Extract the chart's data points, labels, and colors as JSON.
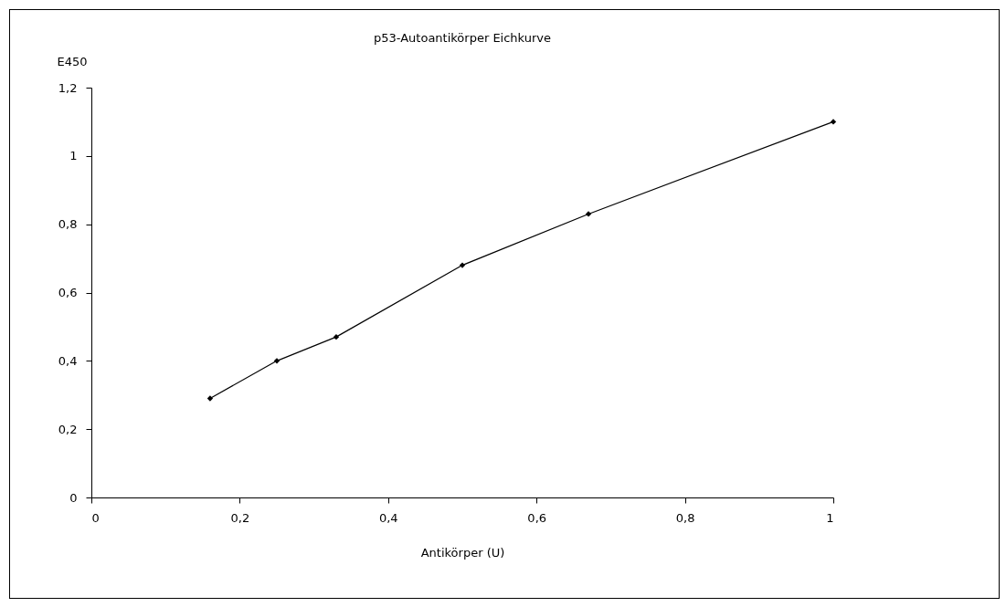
{
  "chart_data": {
    "type": "line",
    "title": "p53-Autoantikörper Eichkurve",
    "xlabel": "Antikörper (U)",
    "ylabel": "E450",
    "x": [
      0.16,
      0.25,
      0.33,
      0.5,
      0.67,
      1
    ],
    "series": [
      {
        "color": "#000000",
        "values": [
          0.29,
          0.4,
          0.47,
          0.68,
          0.83,
          1.1
        ]
      }
    ],
    "xlim": [
      0,
      1
    ],
    "ylim": [
      0,
      1.2
    ],
    "xticks": [
      0,
      {
        "value": 0.2,
        "label": "0,2"
      },
      {
        "value": 0.4,
        "label": "0,4"
      },
      {
        "value": 0.6,
        "label": "0,6"
      },
      {
        "value": 0.8,
        "label": "0,8"
      },
      1
    ],
    "yticks": [
      0,
      {
        "value": 0.2,
        "label": "0,2"
      },
      {
        "value": 0.4,
        "label": "0,4"
      },
      {
        "value": 0.6,
        "label": "0,6"
      },
      {
        "value": 0.8,
        "label": "0,8"
      },
      1,
      {
        "value": 1.2,
        "label": "1,2"
      }
    ],
    "marker": "diamond",
    "line_style": "solid",
    "grid": false
  }
}
